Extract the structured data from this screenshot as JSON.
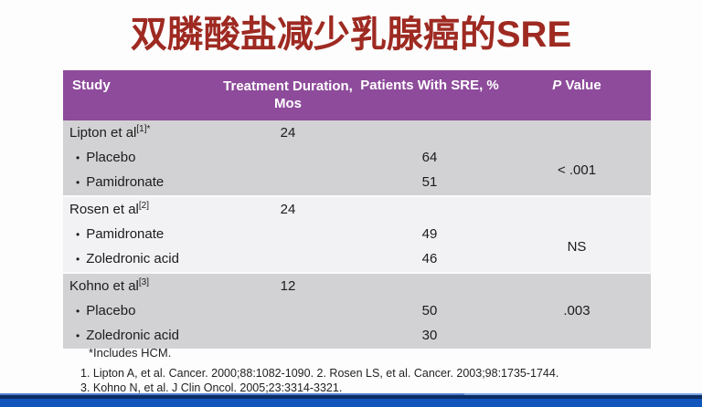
{
  "title": "双膦酸盐减少乳腺癌的SRE",
  "table": {
    "bullet": "•",
    "columns": {
      "study": "Study",
      "duration_line1": "Treatment Duration,",
      "duration_line2": "Mos",
      "sre": "Patients With SRE, %",
      "p_italic": "P",
      "p_rest": "Value"
    },
    "groups": [
      {
        "shade": "dark",
        "study": "Lipton et al",
        "ref_sup": "[1]*",
        "duration": "24",
        "rows": [
          {
            "label": "Placebo",
            "sre": "64"
          },
          {
            "label": "Pamidronate",
            "sre": "51"
          }
        ],
        "p_value": "< .001",
        "p_mode": "merged"
      },
      {
        "shade": "light",
        "study": "Rosen et al",
        "ref_sup": "[2]",
        "duration": "24",
        "rows": [
          {
            "label": "Pamidronate",
            "sre": "49"
          },
          {
            "label": "Zoledronic acid",
            "sre": "46"
          }
        ],
        "p_value": "NS",
        "p_mode": "merged"
      },
      {
        "shade": "dark",
        "study": "Kohno et al",
        "ref_sup": "[3]",
        "duration": "12",
        "rows": [
          {
            "label": "Placebo",
            "sre": "50"
          },
          {
            "label": "Zoledronic acid",
            "sre": "30"
          }
        ],
        "p_value": ".003",
        "p_mode": "first"
      }
    ]
  },
  "footnotes": {
    "star": "*Includes HCM.",
    "ref_line1": "1. Lipton A, et al. Cancer. 2000;88:1082-1090. 2. Rosen LS, et al. Cancer. 2003;98:1735-1744.",
    "ref_line2": "3. Kohno N, et al. J Clin Oncol. 2005;23:3314-3321."
  },
  "colors": {
    "title_red": "#9e2a22",
    "header_purple": "#8e4b9b",
    "row_dark": "#d2d1d3",
    "row_light": "#f2f1f3",
    "bar_navy": "#0d2d63",
    "bar_blue": "#1155bd",
    "bar_light_line": "#4f7ecc"
  }
}
